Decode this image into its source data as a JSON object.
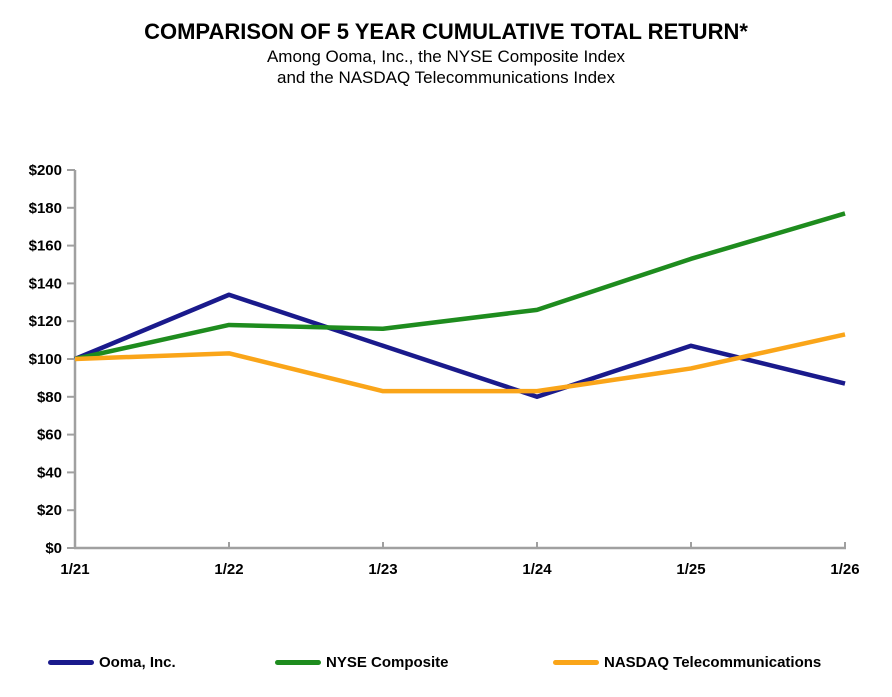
{
  "chart_data": {
    "type": "line",
    "title": "COMPARISON OF 5 YEAR CUMULATIVE TOTAL RETURN*",
    "subtitle_lines": [
      "Among Ooma, Inc., the NYSE Composite Index",
      "and the NASDAQ Telecommunications Index"
    ],
    "categories": [
      "1/21",
      "1/22",
      "1/23",
      "1/24",
      "1/25",
      "1/26"
    ],
    "series": [
      {
        "name": "Ooma, Inc.",
        "color": "#1A1A8C",
        "values": [
          100,
          134,
          107,
          80,
          107,
          87
        ]
      },
      {
        "name": "NYSE Composite",
        "color": "#1E8C1E",
        "values": [
          100,
          118,
          116,
          126,
          153,
          177
        ]
      },
      {
        "name": "NASDAQ Telecommunications",
        "color": "#FAA519",
        "values": [
          100,
          103,
          83,
          83,
          95,
          113
        ]
      }
    ],
    "y_axis": {
      "min": 0,
      "max": 200,
      "step": 20,
      "tick_labels": [
        "$0",
        "$20",
        "$40",
        "$60",
        "$80",
        "$100",
        "$120",
        "$140",
        "$160",
        "$180",
        "$200"
      ]
    },
    "xlabel": "",
    "ylabel": "",
    "ylim": [
      0,
      200
    ],
    "grid": false,
    "legend_position": "bottom",
    "axis_color": "#A0A0A0"
  }
}
